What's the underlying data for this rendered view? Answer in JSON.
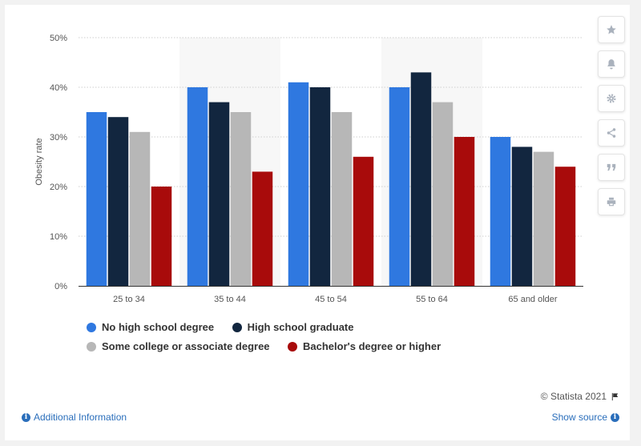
{
  "chart_data": {
    "type": "bar",
    "title": "",
    "xlabel": "",
    "ylabel": "Obesity rate",
    "ylim": [
      0,
      50
    ],
    "yticks": [
      "0%",
      "10%",
      "20%",
      "30%",
      "40%",
      "50%"
    ],
    "categories": [
      "25 to 34",
      "35 to 44",
      "45 to 54",
      "55 to 64",
      "65 and older"
    ],
    "series": [
      {
        "name": "No high school degree",
        "color": "#2f78e0",
        "values": [
          35,
          40,
          41,
          40,
          30
        ]
      },
      {
        "name": "High school graduate",
        "color": "#12263f",
        "values": [
          34,
          37,
          40,
          43,
          28
        ]
      },
      {
        "name": "Some college or associate degree",
        "color": "#b7b7b7",
        "values": [
          31,
          35,
          35,
          37,
          27
        ]
      },
      {
        "name": "Bachelor's degree or higher",
        "color": "#a80b0b",
        "values": [
          20,
          23,
          26,
          30,
          24
        ]
      }
    ],
    "legend_position": "bottom",
    "grid": true
  },
  "footer": {
    "credit": "© Statista 2021",
    "additional_info": "Additional Information",
    "show_source": "Show source"
  },
  "toolbar": {
    "icons": [
      "star-icon",
      "bell-icon",
      "gear-icon",
      "share-icon",
      "quote-icon",
      "print-icon"
    ]
  }
}
